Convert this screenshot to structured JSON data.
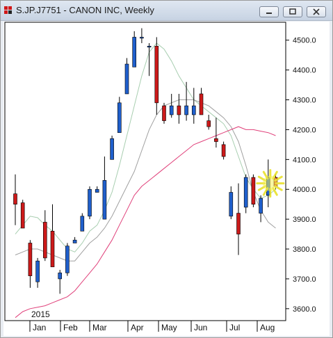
{
  "window": {
    "title": "S.JP.J7751 - CANON INC, Weekly",
    "symbol": "S.JP.J7751",
    "company": "CANON INC",
    "period": "Weekly"
  },
  "chart_data": {
    "type": "candlestick",
    "year_label": "2015",
    "months": [
      "Jan",
      "Feb",
      "Mar",
      "Apr",
      "May",
      "Jun",
      "Jul",
      "Aug"
    ],
    "ylim": [
      3560,
      4560
    ],
    "y_ticks": [
      3600,
      3700,
      3800,
      3900,
      4000,
      4100,
      4200,
      4300,
      4400,
      4500
    ],
    "y_tick_labels": [
      "3600.0",
      "3700.0",
      "3800.0",
      "3900.0",
      "4000.0",
      "4100.0",
      "4200.0",
      "4300.0",
      "4400.0",
      "4500.0"
    ],
    "colors": {
      "up": "#1f5fcc",
      "down": "#cc1a1a",
      "ma_short": "#a8ceb0",
      "ma_mid": "#a0a0a0",
      "ma_long": "#e0407a"
    },
    "candles": [
      {
        "o": 3985,
        "h": 4050,
        "l": 3880,
        "c": 3950
      },
      {
        "o": 3955,
        "h": 3965,
        "l": 3870,
        "c": 3870
      },
      {
        "o": 3820,
        "h": 3830,
        "l": 3670,
        "c": 3710
      },
      {
        "o": 3690,
        "h": 3770,
        "l": 3670,
        "c": 3760
      },
      {
        "o": 3890,
        "h": 3930,
        "l": 3760,
        "c": 3770
      },
      {
        "o": 3860,
        "h": 3950,
        "l": 3740,
        "c": 3740
      },
      {
        "o": 3700,
        "h": 3730,
        "l": 3650,
        "c": 3720
      },
      {
        "o": 3720,
        "h": 3820,
        "l": 3710,
        "c": 3810
      },
      {
        "o": 3820,
        "h": 3840,
        "l": 3820,
        "c": 3830
      },
      {
        "o": 3860,
        "h": 3920,
        "l": 3860,
        "c": 3910
      },
      {
        "o": 3910,
        "h": 4010,
        "l": 3900,
        "c": 4000
      },
      {
        "o": 3990,
        "h": 4010,
        "l": 3990,
        "c": 4000
      },
      {
        "o": 3900,
        "h": 4110,
        "l": 3900,
        "c": 4030
      },
      {
        "o": 4100,
        "h": 4180,
        "l": 4100,
        "c": 4170
      },
      {
        "o": 4190,
        "h": 4310,
        "l": 4190,
        "c": 4290
      },
      {
        "o": 4320,
        "h": 4440,
        "l": 4320,
        "c": 4420
      },
      {
        "o": 4410,
        "h": 4530,
        "l": 4410,
        "c": 4510
      },
      {
        "o": 4510,
        "h": 4540,
        "l": 4490,
        "c": 4510
      },
      {
        "o": 4480,
        "h": 4490,
        "l": 4380,
        "c": 4480
      },
      {
        "o": 4480,
        "h": 4510,
        "l": 4250,
        "c": 4290
      },
      {
        "o": 4280,
        "h": 4290,
        "l": 4220,
        "c": 4230
      },
      {
        "o": 4250,
        "h": 4320,
        "l": 4240,
        "c": 4280
      },
      {
        "o": 4280,
        "h": 4320,
        "l": 4220,
        "c": 4250
      },
      {
        "o": 4250,
        "h": 4360,
        "l": 4230,
        "c": 4280
      },
      {
        "o": 4250,
        "h": 4340,
        "l": 4220,
        "c": 4280
      },
      {
        "o": 4320,
        "h": 4340,
        "l": 4250,
        "c": 4250
      },
      {
        "o": 4230,
        "h": 4250,
        "l": 4200,
        "c": 4210
      },
      {
        "o": 4170,
        "h": 4240,
        "l": 4140,
        "c": 4160
      },
      {
        "o": 4150,
        "h": 4160,
        "l": 4100,
        "c": 4110
      },
      {
        "o": 3910,
        "h": 4010,
        "l": 3900,
        "c": 3990
      },
      {
        "o": 3920,
        "h": 4020,
        "l": 3780,
        "c": 3850
      },
      {
        "o": 3940,
        "h": 4050,
        "l": 3920,
        "c": 4040
      },
      {
        "o": 4040,
        "h": 4050,
        "l": 3940,
        "c": 3950
      },
      {
        "o": 3920,
        "h": 3980,
        "l": 3890,
        "c": 3970
      },
      {
        "o": 3980,
        "h": 4100,
        "l": 3940,
        "c": 4040
      },
      {
        "o": 4040,
        "h": 4050,
        "l": 4000,
        "c": 4010
      }
    ],
    "ma_short": [
      3850,
      3880,
      3910,
      3905,
      3880,
      3860,
      3830,
      3800,
      3790,
      3820,
      3860,
      3880,
      3930,
      3990,
      4080,
      4180,
      4280,
      4380,
      4460,
      4490,
      4470,
      4430,
      4380,
      4340,
      4300,
      4280,
      4260,
      4240,
      4220,
      4180,
      4110,
      4040,
      4000,
      3970,
      3980,
      4000
    ],
    "ma_mid": [
      3780,
      3790,
      3800,
      3800,
      3790,
      3780,
      3770,
      3760,
      3760,
      3790,
      3820,
      3840,
      3870,
      3910,
      3960,
      4010,
      4060,
      4130,
      4200,
      4250,
      4280,
      4290,
      4300,
      4300,
      4300,
      4290,
      4280,
      4260,
      4240,
      4210,
      4160,
      4080,
      3990,
      3930,
      3890,
      3870
    ],
    "ma_long": [
      3570,
      3590,
      3600,
      3605,
      3610,
      3620,
      3630,
      3640,
      3660,
      3690,
      3720,
      3750,
      3790,
      3830,
      3880,
      3930,
      3980,
      4010,
      4030,
      4050,
      4070,
      4090,
      4110,
      4130,
      4150,
      4160,
      4170,
      4180,
      4190,
      4200,
      4210,
      4200,
      4200,
      4195,
      4190,
      4180
    ]
  }
}
